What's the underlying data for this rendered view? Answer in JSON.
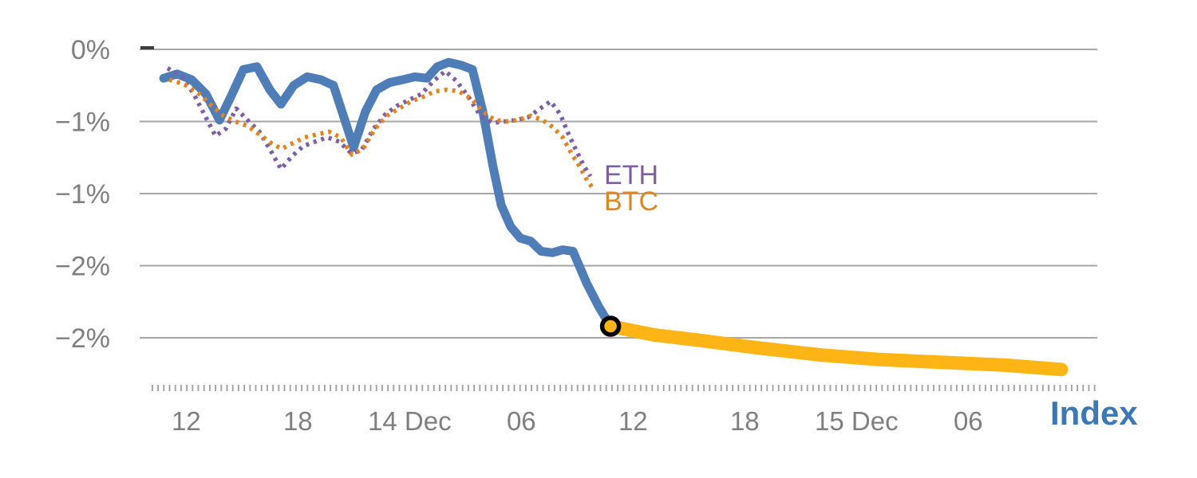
{
  "chart_data": {
    "type": "line",
    "title": "",
    "colors": {
      "index_line": "#4e7db8",
      "forecast_line": "#FDB415",
      "eth_line": "#7d5fa5",
      "btc_line": "#e2851e",
      "gridline": "#a6a6a6",
      "axis_text": "#7f7f7f",
      "axis_dash": "#9e9e9e",
      "marker_ring": "#000000"
    },
    "x_axis": {
      "unit": "hours",
      "xlim": [
        0,
        51.43
      ],
      "ticks": [
        {
          "t": 2.5,
          "label": "12"
        },
        {
          "t": 8.5,
          "label": "18"
        },
        {
          "t": 14.5,
          "label": "14 Dec"
        },
        {
          "t": 20.5,
          "label": "06"
        },
        {
          "t": 26.5,
          "label": "12"
        },
        {
          "t": 32.5,
          "label": "18"
        },
        {
          "t": 38.5,
          "label": "15 Dec"
        },
        {
          "t": 44.5,
          "label": "06"
        }
      ],
      "axis_title": "Index",
      "axis_title_color": "#3b78b8"
    },
    "y_axis": {
      "unit": "percent",
      "ylim": [
        -2.35,
        0.34
      ],
      "gridlines": [
        {
          "value": 0,
          "label": "0%"
        },
        {
          "value": -0.5,
          "label": "−1%"
        },
        {
          "value": -1.0,
          "label": "−1%"
        },
        {
          "value": -1.5,
          "label": "−2%"
        },
        {
          "value": -2.0,
          "label": "−2%"
        }
      ]
    },
    "series": [
      {
        "name": "Index",
        "style": "solid",
        "color": "#4e7db8",
        "width": 11,
        "points": [
          [
            1.29,
            -0.2
          ],
          [
            2.01,
            -0.17
          ],
          [
            2.79,
            -0.21
          ],
          [
            3.56,
            -0.31
          ],
          [
            4.29,
            -0.49
          ],
          [
            4.93,
            -0.32
          ],
          [
            5.57,
            -0.14
          ],
          [
            6.3,
            -0.12
          ],
          [
            6.99,
            -0.28
          ],
          [
            7.59,
            -0.38
          ],
          [
            8.27,
            -0.25
          ],
          [
            9.0,
            -0.19
          ],
          [
            9.73,
            -0.21
          ],
          [
            10.41,
            -0.25
          ],
          [
            11.02,
            -0.49
          ],
          [
            11.49,
            -0.68
          ],
          [
            12.13,
            -0.43
          ],
          [
            12.73,
            -0.28
          ],
          [
            13.42,
            -0.23
          ],
          [
            14.14,
            -0.21
          ],
          [
            14.79,
            -0.19
          ],
          [
            15.43,
            -0.2
          ],
          [
            15.99,
            -0.12
          ],
          [
            16.59,
            -0.09
          ],
          [
            17.27,
            -0.11
          ],
          [
            17.87,
            -0.14
          ],
          [
            18.43,
            -0.43
          ],
          [
            18.99,
            -0.82
          ],
          [
            19.42,
            -1.08
          ],
          [
            19.93,
            -1.23
          ],
          [
            20.45,
            -1.31
          ],
          [
            21.0,
            -1.33
          ],
          [
            21.56,
            -1.4
          ],
          [
            22.16,
            -1.41
          ],
          [
            22.72,
            -1.39
          ],
          [
            23.27,
            -1.4
          ],
          [
            24.0,
            -1.62
          ],
          [
            24.64,
            -1.78
          ],
          [
            25.29,
            -1.92
          ]
        ]
      },
      {
        "name": "Index forecast",
        "style": "solid",
        "color": "#FDB415",
        "width": 17,
        "points": [
          [
            25.29,
            -1.92
          ],
          [
            27.64,
            -1.98
          ],
          [
            30.21,
            -2.02
          ],
          [
            33.21,
            -2.07
          ],
          [
            36.64,
            -2.12
          ],
          [
            39.64,
            -2.15
          ],
          [
            43.07,
            -2.17
          ],
          [
            46.5,
            -2.19
          ],
          [
            49.5,
            -2.22
          ]
        ]
      },
      {
        "name": "ETH",
        "label": "ETH",
        "style": "dotted",
        "color": "#7d5fa5",
        "width": 5.5,
        "points": [
          [
            1.5,
            -0.13
          ],
          [
            2.27,
            -0.19
          ],
          [
            2.91,
            -0.31
          ],
          [
            3.51,
            -0.46
          ],
          [
            4.07,
            -0.6
          ],
          [
            4.63,
            -0.55
          ],
          [
            5.19,
            -0.41
          ],
          [
            5.79,
            -0.49
          ],
          [
            6.43,
            -0.57
          ],
          [
            7.07,
            -0.71
          ],
          [
            7.59,
            -0.83
          ],
          [
            8.19,
            -0.74
          ],
          [
            8.79,
            -0.67
          ],
          [
            9.43,
            -0.64
          ],
          [
            10.07,
            -0.61
          ],
          [
            10.71,
            -0.64
          ],
          [
            11.36,
            -0.72
          ],
          [
            11.91,
            -0.7
          ],
          [
            12.56,
            -0.55
          ],
          [
            13.2,
            -0.45
          ],
          [
            13.84,
            -0.39
          ],
          [
            14.49,
            -0.35
          ],
          [
            15.13,
            -0.31
          ],
          [
            15.77,
            -0.22
          ],
          [
            16.42,
            -0.15
          ],
          [
            17.02,
            -0.22
          ],
          [
            17.66,
            -0.33
          ],
          [
            18.3,
            -0.46
          ],
          [
            18.94,
            -0.51
          ],
          [
            19.59,
            -0.5
          ],
          [
            20.23,
            -0.49
          ],
          [
            20.87,
            -0.47
          ],
          [
            21.51,
            -0.41
          ],
          [
            22.07,
            -0.36
          ],
          [
            22.59,
            -0.45
          ],
          [
            23.01,
            -0.58
          ],
          [
            23.44,
            -0.7
          ],
          [
            23.87,
            -0.81
          ],
          [
            24.21,
            -0.88
          ]
        ]
      },
      {
        "name": "BTC",
        "label": "BTC",
        "style": "dotted",
        "color": "#e2851e",
        "width": 5.5,
        "points": [
          [
            1.59,
            -0.21
          ],
          [
            2.36,
            -0.24
          ],
          [
            3.13,
            -0.3
          ],
          [
            3.86,
            -0.39
          ],
          [
            4.5,
            -0.46
          ],
          [
            5.14,
            -0.5
          ],
          [
            5.79,
            -0.53
          ],
          [
            6.43,
            -0.59
          ],
          [
            7.07,
            -0.65
          ],
          [
            7.63,
            -0.69
          ],
          [
            8.23,
            -0.65
          ],
          [
            8.87,
            -0.61
          ],
          [
            9.51,
            -0.59
          ],
          [
            10.16,
            -0.57
          ],
          [
            10.8,
            -0.61
          ],
          [
            11.4,
            -0.73
          ],
          [
            12.0,
            -0.69
          ],
          [
            12.64,
            -0.55
          ],
          [
            13.28,
            -0.46
          ],
          [
            13.93,
            -0.41
          ],
          [
            14.57,
            -0.36
          ],
          [
            15.21,
            -0.33
          ],
          [
            15.86,
            -0.29
          ],
          [
            16.5,
            -0.28
          ],
          [
            17.14,
            -0.29
          ],
          [
            17.79,
            -0.34
          ],
          [
            18.43,
            -0.43
          ],
          [
            19.07,
            -0.49
          ],
          [
            19.71,
            -0.5
          ],
          [
            20.36,
            -0.49
          ],
          [
            21.0,
            -0.46
          ],
          [
            21.64,
            -0.49
          ],
          [
            22.2,
            -0.54
          ],
          [
            22.72,
            -0.61
          ],
          [
            23.14,
            -0.71
          ],
          [
            23.57,
            -0.8
          ],
          [
            24.0,
            -0.9
          ],
          [
            24.43,
            -0.98
          ]
        ]
      }
    ],
    "marker": {
      "t": 25.29,
      "v": -1.92,
      "ring_color": "#000000"
    },
    "legend_position": "inline-end-of-dotted-lines",
    "grid": true
  }
}
